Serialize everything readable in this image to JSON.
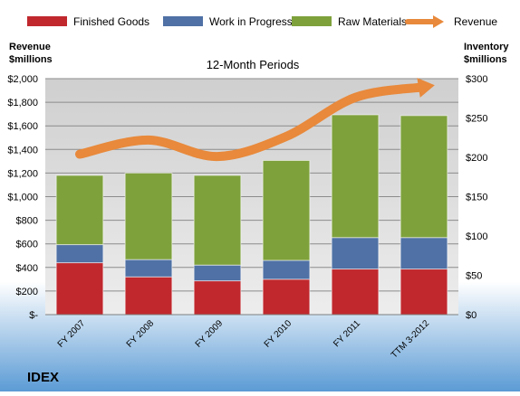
{
  "chart_data": {
    "type": "bar",
    "subtitle": "12-Month Periods",
    "company": "IDEX",
    "left_axis_label": [
      "Revenue",
      "$millions"
    ],
    "right_axis_label": [
      "Inventory",
      "$millions"
    ],
    "categories": [
      "FY 2007",
      "FY 2008",
      "FY 2009",
      "FY 2010",
      "FY 2011",
      "TTM 3-2012"
    ],
    "left_ylim": [
      0,
      2000
    ],
    "right_ylim": [
      0,
      300
    ],
    "left_ticks": [
      "$-",
      "$200",
      "$400",
      "$600",
      "$800",
      "$1,000",
      "$1,200",
      "$1,400",
      "$1,600",
      "$1,800",
      "$2,000"
    ],
    "right_ticks": [
      "$0",
      "$50",
      "$100",
      "$150",
      "$200",
      "$250",
      "$300"
    ],
    "series": [
      {
        "name": "Finished Goods",
        "axis": "right",
        "stack": true,
        "color": "#c0282e",
        "values": [
          66,
          48,
          43,
          45,
          58,
          58
        ]
      },
      {
        "name": "Work in Progress",
        "axis": "right",
        "stack": true,
        "color": "#4f71a5",
        "values": [
          23,
          22,
          20,
          24,
          40,
          40
        ]
      },
      {
        "name": "Raw Materials",
        "axis": "right",
        "stack": true,
        "color": "#7ea13c",
        "values": [
          88,
          110,
          114,
          127,
          156,
          155
        ]
      },
      {
        "name": "Revenue",
        "axis": "left",
        "type": "line",
        "color": "#e8893b",
        "values": [
          1360,
          1480,
          1340,
          1510,
          1840,
          1930
        ]
      }
    ],
    "legend_position": "top",
    "grid": true
  }
}
